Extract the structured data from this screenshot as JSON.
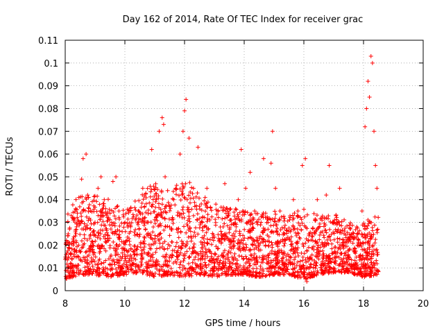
{
  "chart_data": {
    "type": "scatter",
    "title": "Day 162 of 2014, Rate Of TEC Index for receiver grac",
    "xlabel": "GPS time / hours",
    "ylabel": "ROTI / TECUs",
    "xlim": [
      8,
      20
    ],
    "ylim": [
      0,
      0.11
    ],
    "x_ticks": [
      8,
      10,
      12,
      14,
      16,
      18,
      20
    ],
    "y_ticks": [
      0,
      0.01,
      0.02,
      0.03,
      0.04,
      0.05,
      0.06,
      0.07,
      0.08,
      0.09,
      0.1,
      0.11
    ],
    "x_tick_labels": [
      "8",
      "10",
      "12",
      "14",
      "16",
      "18",
      "20"
    ],
    "y_tick_labels": [
      "0",
      "0.01",
      "0.02",
      "0.03",
      "0.04",
      "0.05",
      "0.06",
      "0.07",
      "0.08",
      "0.09",
      "0.1",
      "0.11"
    ],
    "grid": true,
    "marker": "+",
    "series": [
      {
        "name": "ROTI",
        "color": "#ff0000",
        "x": [
          8.05,
          8.1,
          8.2,
          8.3,
          8.45,
          8.55,
          8.6,
          8.7,
          8.75,
          8.85,
          9.0,
          9.1,
          9.2,
          9.35,
          9.45,
          9.6,
          9.7,
          9.8,
          9.9,
          10.0,
          10.1,
          10.3,
          10.45,
          10.6,
          10.75,
          10.9,
          11.05,
          11.15,
          11.25,
          11.3,
          11.35,
          11.5,
          11.7,
          11.85,
          11.95,
          12.0,
          12.05,
          12.15,
          12.3,
          12.45,
          12.6,
          12.75,
          12.9,
          13.05,
          13.2,
          13.35,
          13.5,
          13.65,
          13.8,
          13.9,
          14.05,
          14.2,
          14.35,
          14.5,
          14.65,
          14.8,
          14.9,
          14.95,
          15.05,
          15.2,
          15.35,
          15.5,
          15.65,
          15.8,
          15.95,
          16.05,
          16.1,
          16.3,
          16.45,
          16.6,
          16.75,
          16.85,
          17.0,
          17.2,
          17.35,
          17.5,
          17.6,
          17.8,
          17.95,
          18.05,
          18.1,
          18.15,
          18.2,
          18.25,
          18.3,
          18.35,
          18.4,
          18.45
        ],
        "y": [
          0.006,
          0.025,
          0.033,
          0.015,
          0.02,
          0.049,
          0.058,
          0.06,
          0.042,
          0.018,
          0.03,
          0.045,
          0.05,
          0.01,
          0.022,
          0.048,
          0.05,
          0.035,
          0.01,
          0.015,
          0.028,
          0.012,
          0.035,
          0.045,
          0.03,
          0.062,
          0.04,
          0.07,
          0.076,
          0.073,
          0.05,
          0.028,
          0.045,
          0.06,
          0.07,
          0.079,
          0.084,
          0.067,
          0.045,
          0.063,
          0.03,
          0.045,
          0.015,
          0.038,
          0.028,
          0.047,
          0.012,
          0.025,
          0.04,
          0.062,
          0.045,
          0.052,
          0.035,
          0.02,
          0.058,
          0.03,
          0.056,
          0.07,
          0.045,
          0.035,
          0.025,
          0.015,
          0.04,
          0.035,
          0.055,
          0.058,
          0.004,
          0.022,
          0.04,
          0.032,
          0.042,
          0.055,
          0.03,
          0.045,
          0.025,
          0.015,
          0.01,
          0.02,
          0.035,
          0.072,
          0.08,
          0.092,
          0.085,
          0.103,
          0.1,
          0.07,
          0.055,
          0.045
        ],
        "band": {
          "x": [
            8.0,
            8.5,
            9.0,
            9.5,
            10.0,
            10.5,
            11.0,
            11.5,
            12.0,
            12.5,
            13.0,
            13.5,
            14.0,
            14.5,
            15.0,
            15.5,
            16.0,
            16.5,
            17.0,
            17.5,
            18.0,
            18.5
          ],
          "low": [
            0.005,
            0.007,
            0.007,
            0.006,
            0.007,
            0.008,
            0.006,
            0.007,
            0.006,
            0.007,
            0.006,
            0.007,
            0.007,
            0.006,
            0.007,
            0.007,
            0.005,
            0.007,
            0.008,
            0.008,
            0.006,
            0.007
          ],
          "high": [
            0.035,
            0.042,
            0.043,
            0.04,
            0.035,
            0.042,
            0.048,
            0.045,
            0.05,
            0.043,
            0.038,
            0.036,
            0.036,
            0.034,
            0.035,
            0.033,
            0.036,
            0.033,
            0.034,
            0.03,
            0.03,
            0.035
          ]
        }
      }
    ]
  }
}
